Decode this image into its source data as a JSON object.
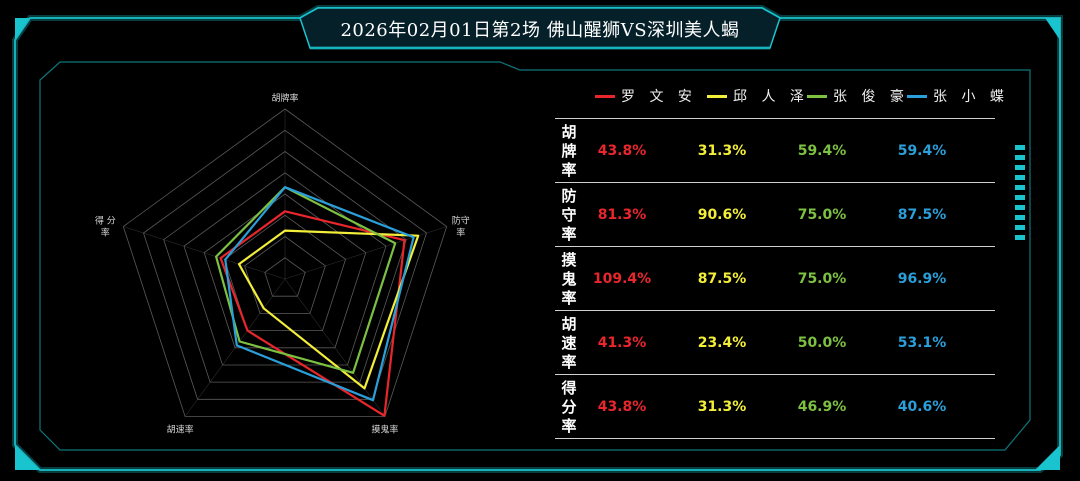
{
  "title": "2026年02月01日第2场 佛山醒狮VS深圳美人蝎",
  "colors": {
    "background": "#000000",
    "frame": "#19c4cf",
    "grid": "#5a5a5a"
  },
  "chart_data": {
    "type": "radar",
    "axes": [
      "胡牌率",
      "防守率",
      "摸鬼率",
      "胡速率",
      "得分率"
    ],
    "axis_labels": [
      "胡牌率",
      "防守率",
      "摸鬼率",
      "胡速率",
      "得 分 率"
    ],
    "rmax": 110,
    "grid_levels": 8,
    "series": [
      {
        "name": "罗 文 安",
        "color": "#e8262c",
        "values": [
          43.8,
          81.3,
          109.4,
          41.3,
          43.8
        ],
        "labels": [
          "43.8%",
          "81.3%",
          "109.4%",
          "41.3%",
          "43.8%"
        ]
      },
      {
        "name": "邱 人 泽",
        "color": "#f2ee3a",
        "values": [
          31.3,
          90.6,
          87.5,
          23.4,
          31.3
        ],
        "labels": [
          "31.3%",
          "90.6%",
          "87.5%",
          "23.4%",
          "31.3%"
        ]
      },
      {
        "name": "张 俊 豪",
        "color": "#7dc142",
        "values": [
          59.4,
          75.0,
          75.0,
          50.0,
          46.9
        ],
        "labels": [
          "59.4%",
          "75.0%",
          "75.0%",
          "50.0%",
          "46.9%"
        ]
      },
      {
        "name": "张 小 蝶",
        "color": "#2b9fd9",
        "values": [
          59.4,
          87.5,
          96.9,
          53.1,
          40.6
        ],
        "labels": [
          "59.4%",
          "87.5%",
          "96.9%",
          "53.1%",
          "40.6%"
        ]
      }
    ]
  }
}
